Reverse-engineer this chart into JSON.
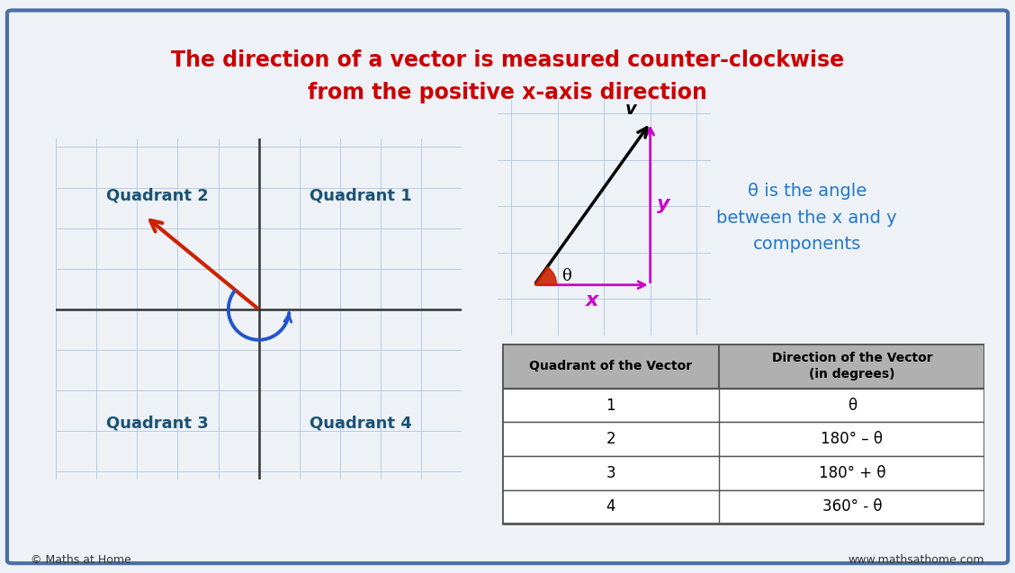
{
  "title_line1": "The direction of a vector is measured counter-clockwise",
  "title_line2": "from the positive x-axis direction",
  "title_color": "#cc0000",
  "background_color": "#eef2f7",
  "border_color": "#4a6fa5",
  "quadrant_labels": [
    "Quadrant 2",
    "Quadrant 1",
    "Quadrant 3",
    "Quadrant 4"
  ],
  "quadrant_color": "#1a5276",
  "grid_color": "#b0c4de",
  "axis_color": "#333333",
  "vector_color": "#cc2200",
  "arc_color": "#2255cc",
  "table_header_bg": "#b0b0b0",
  "table_row_bg": "#ffffff",
  "table_border": "#555555",
  "table_quadrants": [
    "1",
    "2",
    "3",
    "4"
  ],
  "table_directions": [
    "θ",
    "180° – θ",
    "180° + θ",
    "360° - θ"
  ],
  "magenta_color": "#cc00cc",
  "footer_left": "© Maths at Home",
  "footer_right": "www.mathsathome.com",
  "theta_desc_color": "#2277cc",
  "theta_desc": "θ is the angle\nbetween the x and y\ncomponents"
}
